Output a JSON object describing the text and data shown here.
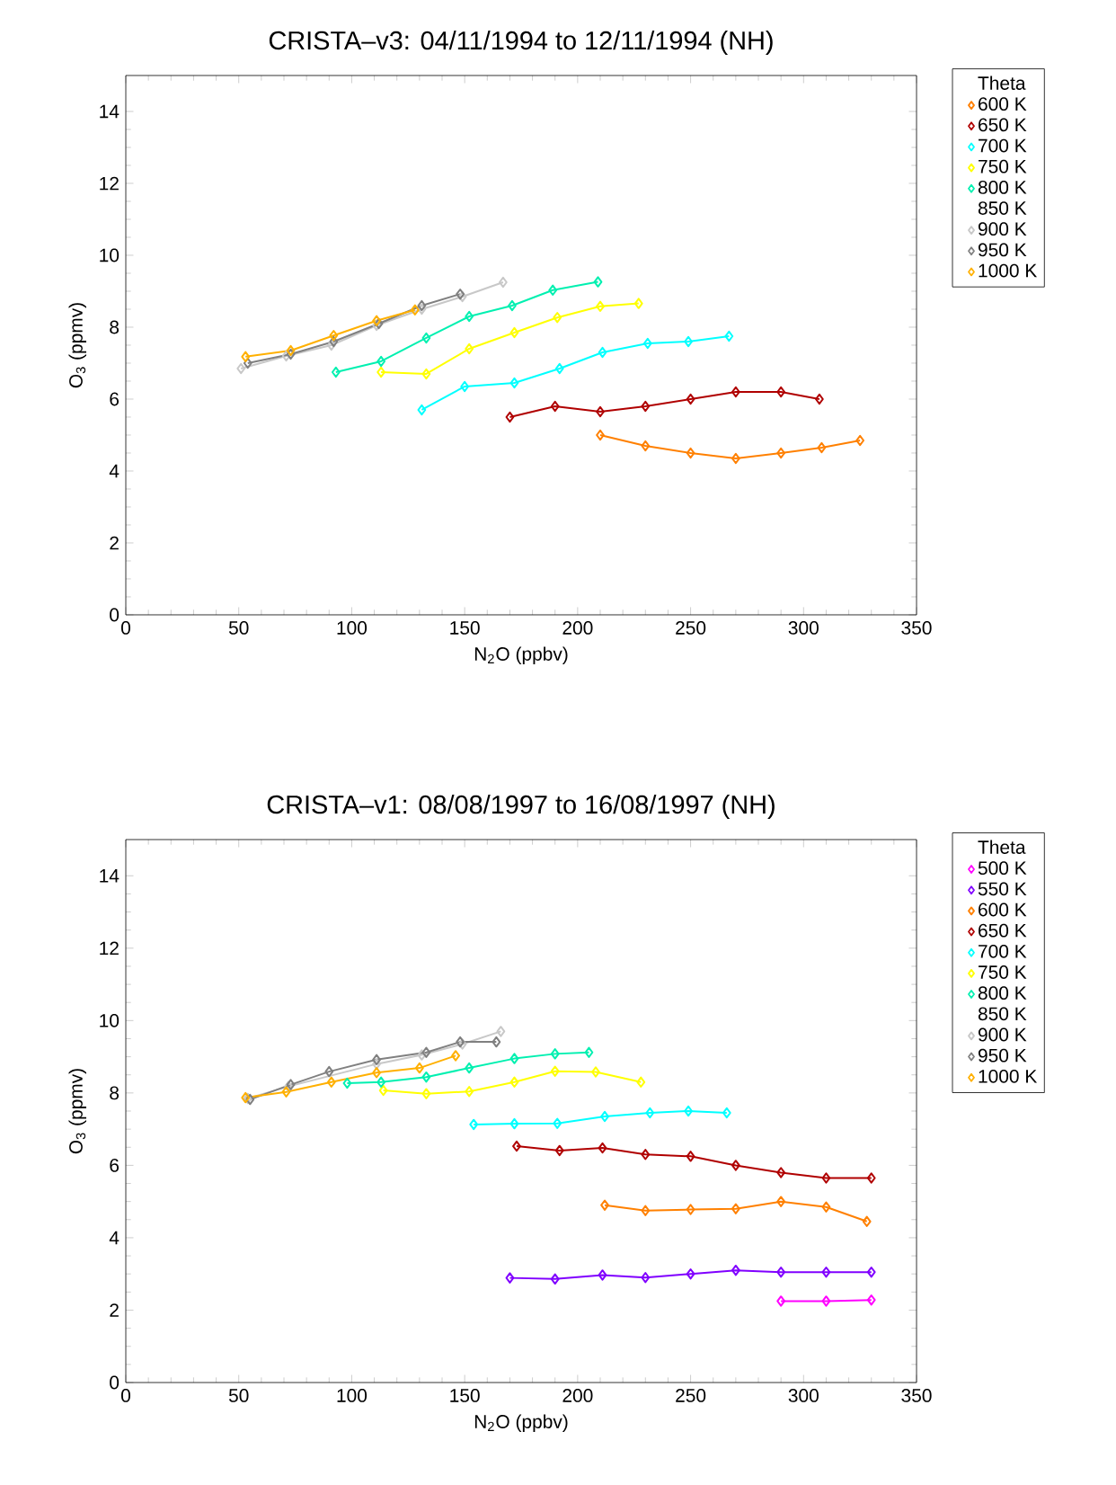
{
  "chart_data": [
    {
      "type": "line",
      "title": "CRISTA–v3: 04/11/1994 to 12/11/1994 (NH)",
      "xlabel": "N$_{2}$O (ppbv)",
      "ylabel": "O$_{3}$ (ppmv)",
      "legend_title": "Theta",
      "legend": "right",
      "marker": "diamond",
      "line_style": "solid",
      "xlim": [
        0,
        350
      ],
      "ylim": [
        0,
        15
      ],
      "xticks": [
        0,
        50,
        100,
        150,
        200,
        250,
        300,
        350
      ],
      "yticks": [
        0,
        2,
        4,
        6,
        8,
        10,
        12,
        14
      ],
      "series": [
        {
          "name": "600 K",
          "color": "#ff8000",
          "x": [
            210,
            230,
            250,
            270,
            290,
            308,
            325
          ],
          "values": [
            5.0,
            4.7,
            4.5,
            4.35,
            4.5,
            4.65,
            4.85
          ]
        },
        {
          "name": "650 K",
          "color": "#b00000",
          "x": [
            170,
            190,
            210,
            230,
            250,
            270,
            290,
            307
          ],
          "values": [
            5.5,
            5.8,
            5.65,
            5.8,
            6.0,
            6.2,
            6.2,
            6.0
          ]
        },
        {
          "name": "700 K",
          "color": "#00ffff",
          "x": [
            131,
            150,
            172,
            192,
            211,
            231,
            249,
            267
          ],
          "values": [
            5.7,
            6.35,
            6.45,
            6.85,
            7.3,
            7.55,
            7.6,
            7.75
          ]
        },
        {
          "name": "750 K",
          "color": "#ffff00",
          "x": [
            113,
            133,
            152,
            172,
            191,
            210,
            227
          ],
          "values": [
            6.75,
            6.7,
            7.4,
            7.85,
            8.27,
            8.58,
            8.66
          ]
        },
        {
          "name": "800 K",
          "color": "#00f0b0",
          "x": [
            93,
            113,
            133,
            152,
            171,
            189,
            209
          ],
          "values": [
            6.75,
            7.05,
            7.7,
            8.3,
            8.6,
            9.03,
            9.26
          ]
        },
        {
          "name": "850 K"
        },
        {
          "name": "900 K",
          "color": "#c8c8c8",
          "x": [
            51,
            71,
            91,
            111,
            131,
            149,
            167
          ],
          "values": [
            6.85,
            7.2,
            7.5,
            8.05,
            8.5,
            8.85,
            9.25
          ]
        },
        {
          "name": "950 K",
          "color": "#808080",
          "x": [
            54,
            73,
            92,
            112,
            131,
            148
          ],
          "values": [
            7.0,
            7.25,
            7.6,
            8.1,
            8.6,
            8.92
          ]
        },
        {
          "name": "1000 K",
          "color": "#ffb000",
          "x": [
            53,
            73,
            92,
            111,
            128
          ],
          "values": [
            7.18,
            7.35,
            7.77,
            8.18,
            8.48
          ]
        }
      ]
    },
    {
      "type": "line",
      "title": "CRISTA–v1: 08/08/1997 to 16/08/1997 (NH)",
      "xlabel": "N$_{2}$O (ppbv)",
      "ylabel": "O$_{3}$ (ppmv)",
      "legend_title": "Theta",
      "legend": "right",
      "marker": "diamond",
      "line_style": "solid",
      "xlim": [
        0,
        350
      ],
      "ylim": [
        0,
        15
      ],
      "xticks": [
        0,
        50,
        100,
        150,
        200,
        250,
        300,
        350
      ],
      "yticks": [
        0,
        2,
        4,
        6,
        8,
        10,
        12,
        14
      ],
      "series": [
        {
          "name": "500 K",
          "color": "#ff00ff",
          "x": [
            290,
            310,
            330
          ],
          "values": [
            2.25,
            2.25,
            2.28
          ]
        },
        {
          "name": "550 K",
          "color": "#8000ff",
          "x": [
            170,
            190,
            211,
            230,
            250,
            270,
            290,
            310,
            330
          ],
          "values": [
            2.89,
            2.86,
            2.97,
            2.9,
            3.0,
            3.1,
            3.05,
            3.05,
            3.05
          ]
        },
        {
          "name": "600 K",
          "color": "#ff8000",
          "x": [
            212,
            230,
            250,
            270,
            290,
            310,
            328
          ],
          "values": [
            4.9,
            4.75,
            4.78,
            4.8,
            5.0,
            4.85,
            4.45
          ]
        },
        {
          "name": "650 K",
          "color": "#b00000",
          "x": [
            173,
            192,
            211,
            230,
            250,
            270,
            290,
            310,
            330
          ],
          "values": [
            6.53,
            6.41,
            6.48,
            6.3,
            6.25,
            6.0,
            5.8,
            5.65,
            5.65
          ]
        },
        {
          "name": "700 K",
          "color": "#00ffff",
          "x": [
            154,
            172,
            191,
            212,
            232,
            249,
            266
          ],
          "values": [
            7.13,
            7.15,
            7.16,
            7.35,
            7.45,
            7.5,
            7.45
          ]
        },
        {
          "name": "750 K",
          "color": "#ffff00",
          "x": [
            114,
            133,
            152,
            172,
            190,
            208,
            228
          ],
          "values": [
            8.07,
            7.98,
            8.04,
            8.3,
            8.6,
            8.58,
            8.3
          ]
        },
        {
          "name": "800 K",
          "color": "#00f0b0",
          "x": [
            98,
            113,
            133,
            152,
            172,
            190,
            205
          ],
          "values": [
            8.27,
            8.3,
            8.44,
            8.69,
            8.95,
            9.08,
            9.12
          ]
        },
        {
          "name": "850 K"
        },
        {
          "name": "900 K",
          "color": "#c8c8c8",
          "x": [
            54,
            72,
            91,
            111,
            131,
            149,
            166
          ],
          "values": [
            7.85,
            8.18,
            null,
            8.8,
            9.05,
            9.35,
            9.7
          ]
        },
        {
          "name": "950 K",
          "color": "#808080",
          "x": [
            55,
            73,
            90,
            111,
            133,
            148,
            164
          ],
          "values": [
            7.82,
            8.23,
            8.59,
            8.92,
            9.12,
            9.41,
            9.41
          ]
        },
        {
          "name": "1000 K",
          "color": "#ffb000",
          "x": [
            53,
            71,
            91,
            111,
            130,
            146
          ],
          "values": [
            7.87,
            8.03,
            8.3,
            8.56,
            8.69,
            9.03
          ]
        }
      ]
    }
  ]
}
